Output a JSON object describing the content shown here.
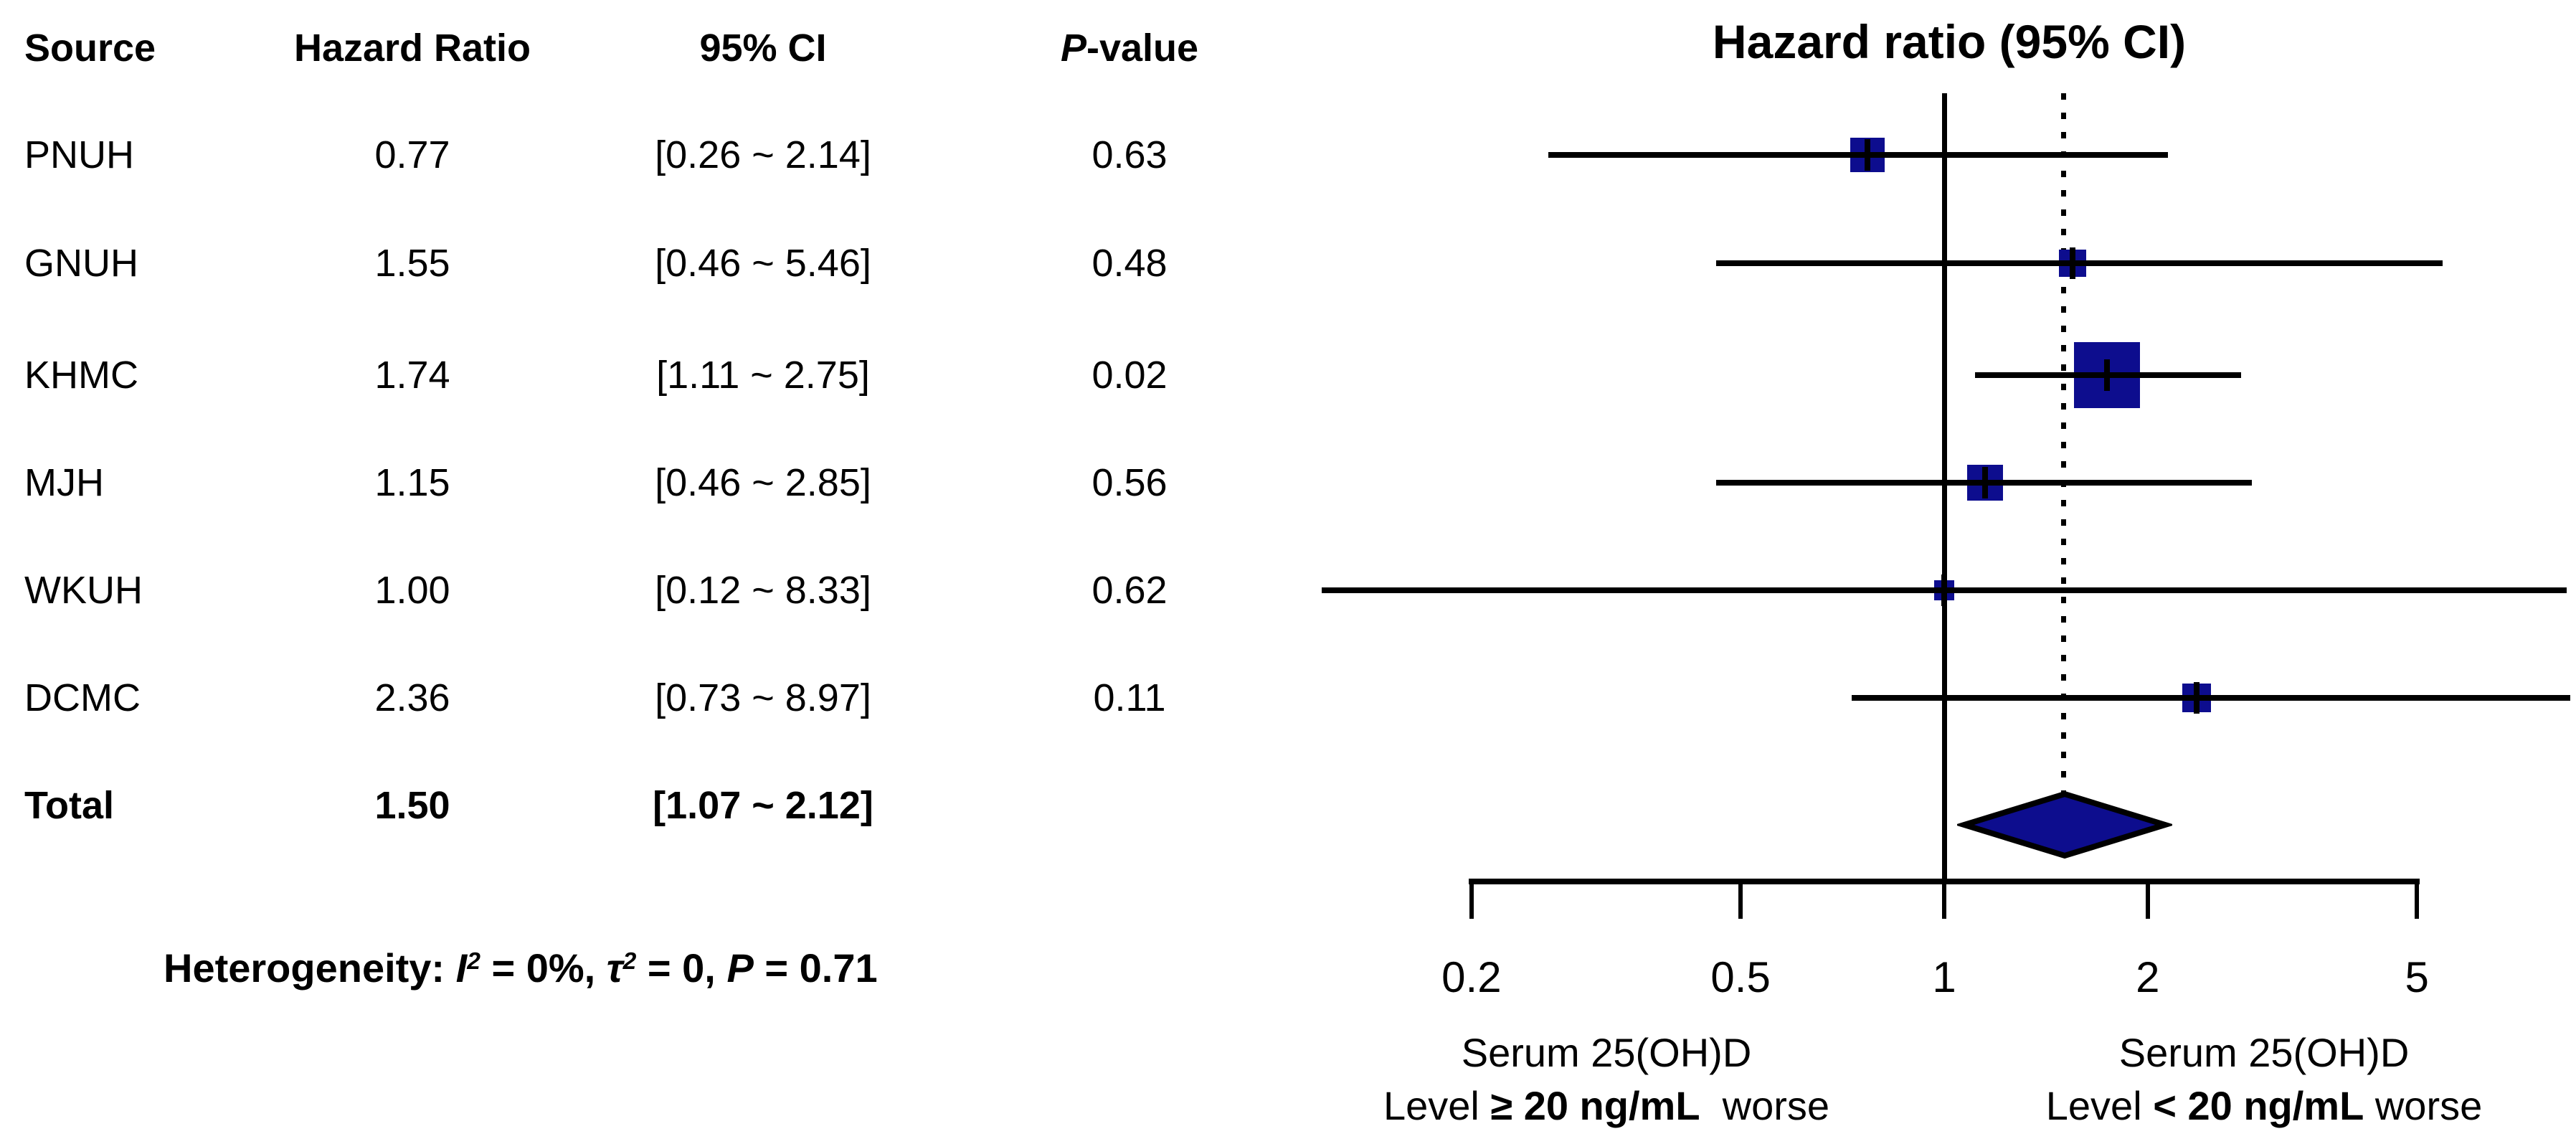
{
  "title": "Hazard ratio (95% CI)",
  "colors": {
    "marker_fill": "#0d0d8e",
    "line": "#000000",
    "background": "#ffffff"
  },
  "table": {
    "headers": {
      "source": "Source",
      "hazard_ratio": "Hazard Ratio",
      "ci": "95% CI",
      "pvalue": [
        {
          "text": "P",
          "italic": true
        },
        {
          "text": "-value",
          "italic": false
        }
      ]
    },
    "rows": [
      {
        "source": "PNUH",
        "hr": "0.77",
        "ci": "[0.26 ~ 2.14]",
        "p": "0.63"
      },
      {
        "source": "GNUH",
        "hr": "1.55",
        "ci": "[0.46 ~ 5.46]",
        "p": "0.48"
      },
      {
        "source": "KHMC",
        "hr": "1.74",
        "ci": "[1.11 ~ 2.75]",
        "p": "0.02"
      },
      {
        "source": "MJH",
        "hr": "1.15",
        "ci": "[0.46 ~ 2.85]",
        "p": "0.56"
      },
      {
        "source": "WKUH",
        "hr": "1.00",
        "ci": "[0.12 ~ 8.33]",
        "p": "0.62"
      },
      {
        "source": "DCMC",
        "hr": "2.36",
        "ci": "[0.73 ~ 8.97]",
        "p": "0.11"
      }
    ],
    "total": {
      "source": "Total",
      "hr": "1.50",
      "ci": "[1.07 ~ 2.12]"
    }
  },
  "heterogeneity": [
    {
      "text": "Heterogeneity: "
    },
    {
      "text": "I",
      "italic": true
    },
    {
      "text": "2",
      "italic": true,
      "sup": true
    },
    {
      "text": " = 0%, "
    },
    {
      "text": "τ",
      "italic": true
    },
    {
      "text": "2",
      "italic": true,
      "sup": true
    },
    {
      "text": " = 0, "
    },
    {
      "text": "P",
      "italic": true
    },
    {
      "text": " = 0.71"
    }
  ],
  "axis": {
    "tick_labels": [
      "0.2",
      "0.5",
      "1",
      "2",
      "5"
    ]
  },
  "footnotes": {
    "left": {
      "line1": "Serum 25(OH)D",
      "line2": [
        {
          "text": "Level "
        },
        {
          "text": "≥ 20 ng/mL",
          "bold": true
        },
        {
          "text": "  worse"
        }
      ]
    },
    "right": {
      "line1": "Serum 25(OH)D",
      "line2": [
        {
          "text": "Level "
        },
        {
          "text": "< 20 ng/mL",
          "bold": true
        },
        {
          "text": " worse"
        }
      ]
    }
  },
  "chart_data": {
    "type": "forest",
    "title": "Hazard ratio (95% CI)",
    "x_scale": "log",
    "x_ticks": [
      0.2,
      0.5,
      1,
      2,
      5
    ],
    "reference_line": 1.0,
    "pooled_dotted_line": 1.5,
    "studies": [
      {
        "source": "PNUH",
        "hr": 0.77,
        "ci_low": 0.26,
        "ci_high": 2.14,
        "p_value": 0.63,
        "marker_size": 48
      },
      {
        "source": "GNUH",
        "hr": 1.55,
        "ci_low": 0.46,
        "ci_high": 5.46,
        "p_value": 0.48,
        "marker_size": 38
      },
      {
        "source": "KHMC",
        "hr": 1.74,
        "ci_low": 1.11,
        "ci_high": 2.75,
        "p_value": 0.02,
        "marker_size": 92
      },
      {
        "source": "MJH",
        "hr": 1.15,
        "ci_low": 0.46,
        "ci_high": 2.85,
        "p_value": 0.56,
        "marker_size": 50
      },
      {
        "source": "WKUH",
        "hr": 1.0,
        "ci_low": 0.12,
        "ci_high": 8.33,
        "p_value": 0.62,
        "marker_size": 28
      },
      {
        "source": "DCMC",
        "hr": 2.36,
        "ci_low": 0.73,
        "ci_high": 8.97,
        "p_value": 0.11,
        "marker_size": 40
      }
    ],
    "total": {
      "source": "Total",
      "hr": 1.5,
      "ci_low": 1.07,
      "ci_high": 2.12
    },
    "heterogeneity": {
      "I2": "0%",
      "tau2": "0",
      "P": "0.71"
    },
    "xlabel_left": "Serum 25(OH)D Level ≥ 20 ng/mL worse",
    "xlabel_right": "Serum 25(OH)D Level < 20 ng/mL worse"
  }
}
